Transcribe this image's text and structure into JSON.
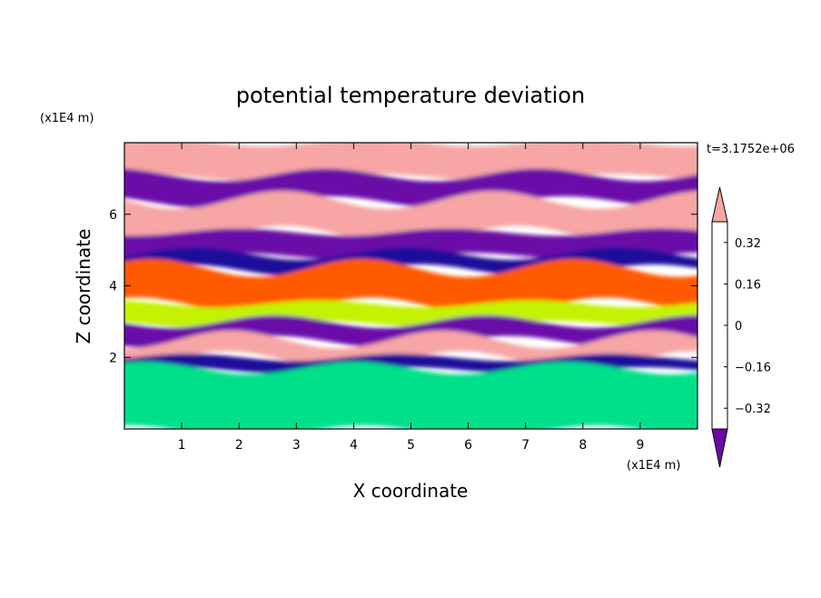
{
  "chart_data": {
    "type": "heatmap",
    "title": "potential temperature deviation",
    "xlabel": "X coordinate",
    "ylabel": "Z coordinate",
    "x_unit": "(x1E4 m)",
    "y_unit": "(x1E4 m)",
    "timestamp": "t=3.1752e+06",
    "xlim": [
      0,
      10
    ],
    "ylim": [
      0,
      8
    ],
    "x_ticks": [
      {
        "value": 1,
        "label": "1"
      },
      {
        "value": 2,
        "label": "2"
      },
      {
        "value": 3,
        "label": "3"
      },
      {
        "value": 4,
        "label": "4"
      },
      {
        "value": 5,
        "label": "5"
      },
      {
        "value": 6,
        "label": "6"
      },
      {
        "value": 7,
        "label": "7"
      },
      {
        "value": 8,
        "label": "8"
      },
      {
        "value": 9,
        "label": "9"
      }
    ],
    "y_ticks": [
      {
        "value": 2,
        "label": "2"
      },
      {
        "value": 4,
        "label": "4"
      },
      {
        "value": 6,
        "label": "6"
      }
    ],
    "colorbar": {
      "range": [
        -0.4,
        0.4
      ],
      "levels": [
        -0.4,
        -0.32,
        -0.24,
        -0.16,
        -0.08,
        0,
        0.08,
        0.16,
        0.24,
        0.32,
        0.4
      ],
      "colors": [
        "#1a0c9a",
        "#1e45ff",
        "#00b4ff",
        "#00e08a",
        "#4fe31c",
        "#c4f200",
        "#ffff00",
        "#ffa000",
        "#ff5a00",
        "#ff2020"
      ],
      "under_color": "#6a0aa8",
      "over_color": "#f7a5a5",
      "tick_labels": [
        {
          "value": 0.32,
          "label": "0.32"
        },
        {
          "value": 0.16,
          "label": "0.16"
        },
        {
          "value": 0,
          "label": "0"
        },
        {
          "value": -0.16,
          "label": "−0.16"
        },
        {
          "value": -0.32,
          "label": "−0.32"
        }
      ]
    },
    "field_bands": [
      {
        "z_top": 8.0,
        "z_bottom": 7.1,
        "value": 0.5
      },
      {
        "z_top": 7.1,
        "z_bottom": 6.4,
        "value": -0.5
      },
      {
        "z_top": 6.4,
        "z_bottom": 5.5,
        "value": 0.5
      },
      {
        "z_top": 5.5,
        "z_bottom": 4.9,
        "value": -0.5
      },
      {
        "z_top": 4.9,
        "z_bottom": 4.5,
        "value": -0.35
      },
      {
        "z_top": 4.5,
        "z_bottom": 3.5,
        "value": 0.3
      },
      {
        "z_top": 3.5,
        "z_bottom": 3.0,
        "value": 0.0
      },
      {
        "z_top": 3.0,
        "z_bottom": 2.5,
        "value": -0.5
      },
      {
        "z_top": 2.5,
        "z_bottom": 2.0,
        "value": 0.5
      },
      {
        "z_top": 2.0,
        "z_bottom": 1.7,
        "value": -0.35
      },
      {
        "z_top": 1.7,
        "z_bottom": 0.0,
        "value": -0.1
      }
    ]
  }
}
